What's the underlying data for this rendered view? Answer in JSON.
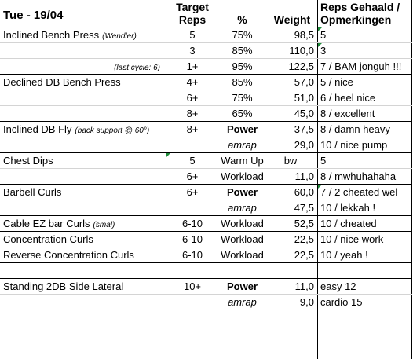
{
  "sheet": {
    "title": "Tue - 19/04",
    "headers": {
      "target_reps": [
        "Target",
        "Reps"
      ],
      "pct": "%",
      "weight": "Weight",
      "result": [
        "Reps Gehaald /",
        "Opmerkingen"
      ]
    },
    "rows": [
      {
        "exercise": "Inclined Bench Press",
        "note": "(Wendler)",
        "reps": "5",
        "pct": "75%",
        "weight": "98,5",
        "result": "5"
      },
      {
        "exercise": "",
        "note": "",
        "reps": "3",
        "pct": "85%",
        "weight": "110,0",
        "result": "3"
      },
      {
        "exercise": "",
        "note": "(last cycle: 6)",
        "reps": "1+",
        "pct": "95%",
        "weight": "122,5",
        "result": "7 / BAM jonguh !!!"
      },
      {
        "exercise": "Declined DB Bench Press",
        "note": "",
        "reps": "4+",
        "pct": "85%",
        "weight": "57,0",
        "result": "5 / nice"
      },
      {
        "exercise": "",
        "note": "",
        "reps": "6+",
        "pct": "75%",
        "weight": "51,0",
        "result": "6 / heel nice"
      },
      {
        "exercise": "",
        "note": "",
        "reps": "8+",
        "pct": "65%",
        "weight": "45,0",
        "result": "8 / excellent"
      },
      {
        "exercise": "Inclined DB Fly",
        "note": "(back support @ 60°)",
        "reps": "8+",
        "pct": "Power",
        "weight": "37,5",
        "result": "8 / damn heavy"
      },
      {
        "exercise": "",
        "note": "",
        "reps": "",
        "pct": "amrap",
        "weight": "29,0",
        "result": "10 / nice pump"
      },
      {
        "exercise": "Chest Dips",
        "note": "",
        "reps": "5",
        "pct": "Warm Up",
        "weight": "bw",
        "result": "5"
      },
      {
        "exercise": "",
        "note": "",
        "reps": "6+",
        "pct": "Workload",
        "weight": "11,0",
        "result": "8 / mwhuhahaha"
      },
      {
        "exercise": "Barbell Curls",
        "note": "",
        "reps": "6+",
        "pct": "Power",
        "weight": "60,0",
        "result": "7 / 2 cheated wel"
      },
      {
        "exercise": "",
        "note": "",
        "reps": "",
        "pct": "amrap",
        "weight": "47,5",
        "result": "10 / lekkah !"
      },
      {
        "exercise": "Cable EZ bar Curls",
        "note": "(smal)",
        "reps": "6-10",
        "pct": "Workload",
        "weight": "52,5",
        "result": "10 / cheated"
      },
      {
        "exercise": "Concentration Curls",
        "note": "",
        "reps": "6-10",
        "pct": "Workload",
        "weight": "22,5",
        "result": "10 / nice work"
      },
      {
        "exercise": "Reverse Concentration Curls",
        "note": "",
        "reps": "6-10",
        "pct": "Workload",
        "weight": "22,5",
        "result": "10 / yeah !"
      },
      {
        "exercise": "",
        "note": "",
        "reps": "",
        "pct": "",
        "weight": "",
        "result": ""
      },
      {
        "exercise": "Standing 2DB Side Lateral",
        "note": "",
        "reps": "10+",
        "pct": "Power",
        "weight": "11,0",
        "result": "easy 12"
      },
      {
        "exercise": "",
        "note": "",
        "reps": "",
        "pct": "amrap",
        "weight": "9,0",
        "result": "cardio 15"
      }
    ]
  },
  "colors": {
    "comment_marker": "#1e8a3a",
    "border": "#000000",
    "grid": "#d4d4d4"
  }
}
